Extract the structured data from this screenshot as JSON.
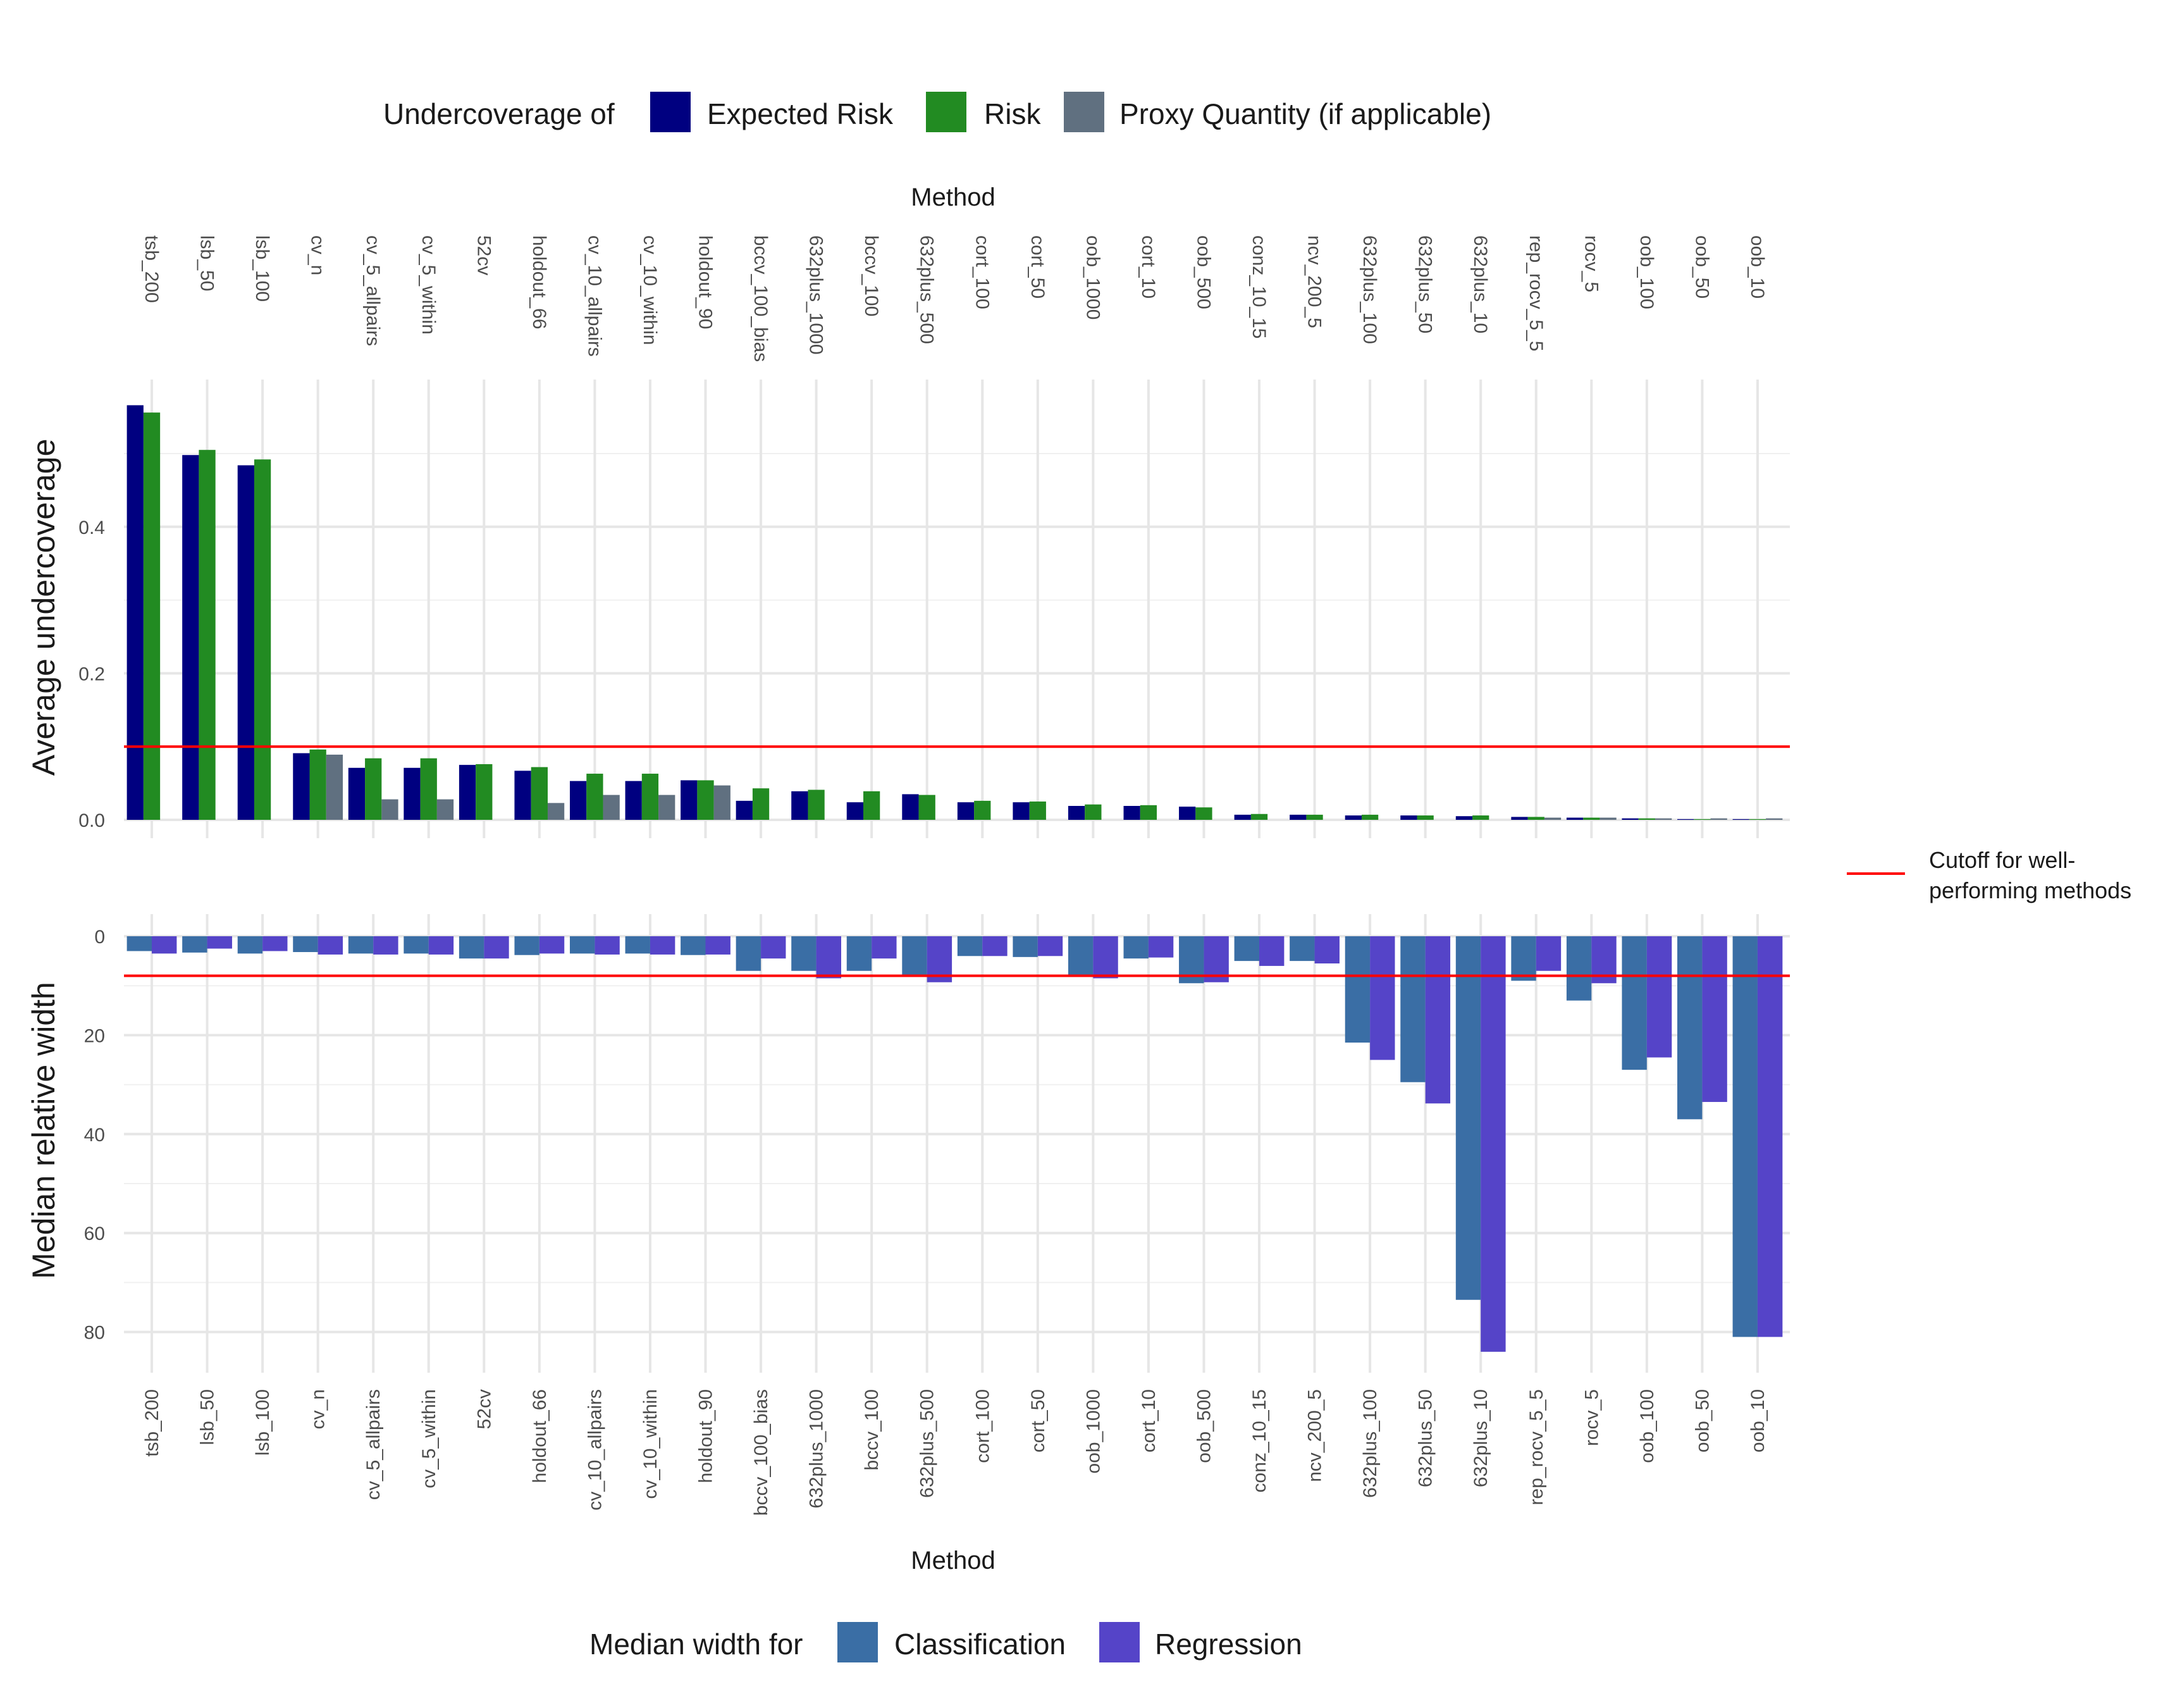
{
  "chart_data": [
    {
      "type": "bar",
      "panel": "top",
      "ylabel": "Average undercoverage",
      "xlabel": "Method",
      "x_axis_position": "top",
      "ylim": [
        0,
        0.6
      ],
      "yticks": [
        0.0,
        0.2,
        0.4
      ],
      "ytick_labels": [
        "0.0",
        "0.2",
        "0.4"
      ],
      "cutoff": 0.1,
      "categories": [
        "tsb_200",
        "lsb_50",
        "lsb_100",
        "cv_n",
        "cv_5_allpairs",
        "cv_5_within",
        "52cv",
        "holdout_66",
        "cv_10_allpairs",
        "cv_10_within",
        "holdout_90",
        "bccv_100_bias",
        "632plus_1000",
        "bccv_100",
        "632plus_500",
        "cort_100",
        "cort_50",
        "oob_1000",
        "cort_10",
        "oob_500",
        "conz_10_15",
        "ncv_200_5",
        "632plus_100",
        "632plus_50",
        "632plus_10",
        "rep_rocv_5_5",
        "rocv_5",
        "oob_100",
        "oob_50",
        "oob_10"
      ],
      "series": [
        {
          "name": "Expected Risk",
          "color": "#000080",
          "values": [
            0.566,
            0.498,
            0.484,
            0.091,
            0.071,
            0.071,
            0.075,
            0.067,
            0.053,
            0.053,
            0.054,
            0.026,
            0.039,
            0.024,
            0.035,
            0.024,
            0.024,
            0.019,
            0.019,
            0.018,
            0.007,
            0.007,
            0.006,
            0.006,
            0.005,
            0.004,
            0.003,
            0.002,
            0.001,
            0.001
          ]
        },
        {
          "name": "Risk",
          "color": "#228B22",
          "values": [
            0.556,
            0.505,
            0.492,
            0.096,
            0.084,
            0.084,
            0.076,
            0.072,
            0.063,
            0.063,
            0.054,
            0.043,
            0.041,
            0.039,
            0.034,
            0.026,
            0.025,
            0.021,
            0.02,
            0.017,
            0.008,
            0.007,
            0.007,
            0.006,
            0.006,
            0.004,
            0.003,
            0.002,
            0.001,
            0.001
          ]
        },
        {
          "name": "Proxy Quantity (if applicable)",
          "color": "#607080",
          "values": [
            null,
            null,
            null,
            0.089,
            0.028,
            0.028,
            null,
            0.023,
            0.034,
            0.034,
            0.047,
            null,
            null,
            null,
            null,
            null,
            null,
            null,
            null,
            null,
            null,
            null,
            null,
            null,
            null,
            0.003,
            0.003,
            0.002,
            0.002,
            0.002
          ]
        }
      ],
      "legend": {
        "title": "Undercoverage of",
        "position": "top"
      }
    },
    {
      "type": "bar",
      "panel": "bottom",
      "ylabel": "Median relative width",
      "xlabel": "Method",
      "y_reversed": true,
      "ylim": [
        0,
        88
      ],
      "yticks": [
        0,
        20,
        40,
        60,
        80
      ],
      "ytick_labels": [
        "0",
        "20",
        "40",
        "60",
        "80"
      ],
      "cutoff": 8,
      "categories": [
        "tsb_200",
        "lsb_50",
        "lsb_100",
        "cv_n",
        "cv_5_allpairs",
        "cv_5_within",
        "52cv",
        "holdout_66",
        "cv_10_allpairs",
        "cv_10_within",
        "holdout_90",
        "bccv_100_bias",
        "632plus_1000",
        "bccv_100",
        "632plus_500",
        "cort_100",
        "cort_50",
        "oob_1000",
        "cort_10",
        "oob_500",
        "conz_10_15",
        "ncv_200_5",
        "632plus_100",
        "632plus_50",
        "632plus_10",
        "rep_rocv_5_5",
        "rocv_5",
        "oob_100",
        "oob_50",
        "oob_10"
      ],
      "series": [
        {
          "name": "Classification",
          "color": "#3A6EA5",
          "values": [
            3.0,
            3.3,
            3.5,
            3.2,
            3.5,
            3.5,
            4.5,
            3.8,
            3.5,
            3.5,
            3.8,
            7.0,
            7.0,
            7.0,
            8.0,
            4.0,
            4.2,
            8.0,
            4.5,
            9.5,
            5.0,
            5.0,
            21.5,
            29.5,
            73.5,
            9.0,
            13.0,
            27.0,
            37.0,
            81.0
          ]
        },
        {
          "name": "Regression",
          "color": "#5544C8",
          "values": [
            3.5,
            2.5,
            3.0,
            3.7,
            3.7,
            3.7,
            4.5,
            3.5,
            3.7,
            3.7,
            3.7,
            4.5,
            8.5,
            4.5,
            9.3,
            4.0,
            4.0,
            8.5,
            4.3,
            9.3,
            6.0,
            5.5,
            25.0,
            33.8,
            84.0,
            7.0,
            9.5,
            24.5,
            33.5,
            81.0
          ]
        }
      ],
      "legend": {
        "title": "Median width for",
        "position": "bottom"
      }
    }
  ],
  "cutoff_legend": {
    "color": "#FF0000",
    "line1": "Cutoff for well-",
    "line2": "performing methods"
  }
}
